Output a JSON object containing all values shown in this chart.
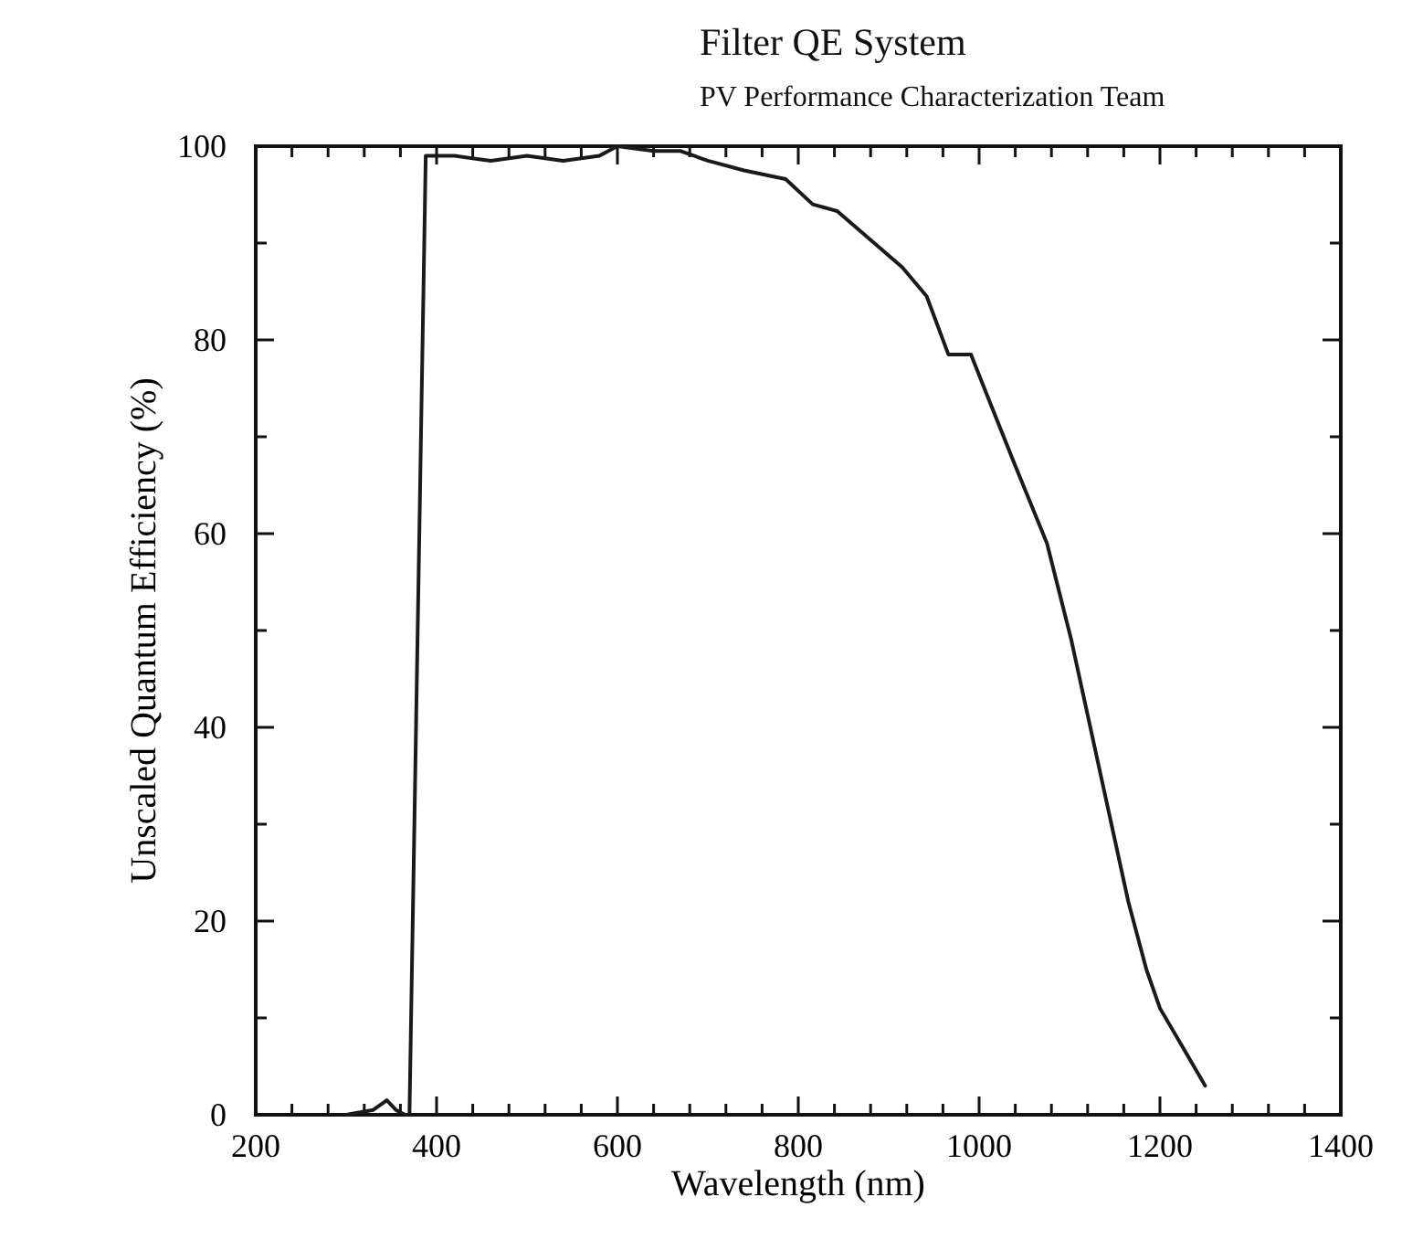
{
  "chart_data": {
    "type": "line",
    "title": "Filter QE System",
    "subtitle": "PV Performance Characterization Team",
    "xlabel": "Wavelength (nm)",
    "ylabel": "Unscaled Quantum Efficiency (%)",
    "xlim": [
      200,
      1400
    ],
    "ylim": [
      0,
      100
    ],
    "xticks": [
      200,
      {
        "value": 240,
        "label": null
      },
      {
        "value": 280,
        "label": null
      },
      {
        "value": 320,
        "label": null
      },
      {
        "value": 360,
        "label": null
      },
      400,
      {
        "value": 440,
        "label": null
      },
      {
        "value": 480,
        "label": null
      },
      {
        "value": 520,
        "label": null
      },
      {
        "value": 560,
        "label": null
      },
      600,
      {
        "value": 640,
        "label": null
      },
      {
        "value": 680,
        "label": null
      },
      {
        "value": 720,
        "label": null
      },
      {
        "value": 760,
        "label": null
      },
      800,
      {
        "value": 840,
        "label": null
      },
      {
        "value": 880,
        "label": null
      },
      {
        "value": 920,
        "label": null
      },
      {
        "value": 960,
        "label": null
      },
      1000,
      {
        "value": 1040,
        "label": null
      },
      {
        "value": 1080,
        "label": null
      },
      {
        "value": 1120,
        "label": null
      },
      {
        "value": 1160,
        "label": null
      },
      1200,
      {
        "value": 1240,
        "label": null
      },
      {
        "value": 1280,
        "label": null
      },
      {
        "value": 1320,
        "label": null
      },
      {
        "value": 1360,
        "label": null
      },
      1400
    ],
    "yticks": [
      0,
      {
        "value": 10,
        "label": null
      },
      20,
      {
        "value": 30,
        "label": null
      },
      40,
      {
        "value": 50,
        "label": null
      },
      60,
      {
        "value": 70,
        "label": null
      },
      80,
      {
        "value": 90,
        "label": null
      },
      100
    ],
    "grid": false,
    "marker": "none",
    "line_style": "solid",
    "series": [
      {
        "color": "#1a1a1a",
        "x": [
          300,
          330,
          345,
          355,
          365,
          370,
          388,
          420,
          460,
          500,
          540,
          580,
          600,
          640,
          670,
          700,
          740,
          786,
          816,
          843,
          884,
          915,
          942,
          966,
          991,
          1010,
          1040,
          1075,
          1102,
          1137,
          1165,
          1185,
          1200,
          1225,
          1250
        ],
        "values": [
          0,
          0.5,
          1.5,
          0.5,
          0,
          0,
          99,
          99,
          98.5,
          99,
          98.5,
          99,
          100,
          99.5,
          99.5,
          98.5,
          97.5,
          96.6,
          94,
          93.3,
          90,
          87.5,
          84.5,
          78.5,
          78.5,
          74,
          67,
          59,
          49,
          34,
          22,
          15,
          11,
          7,
          3
        ]
      }
    ]
  }
}
